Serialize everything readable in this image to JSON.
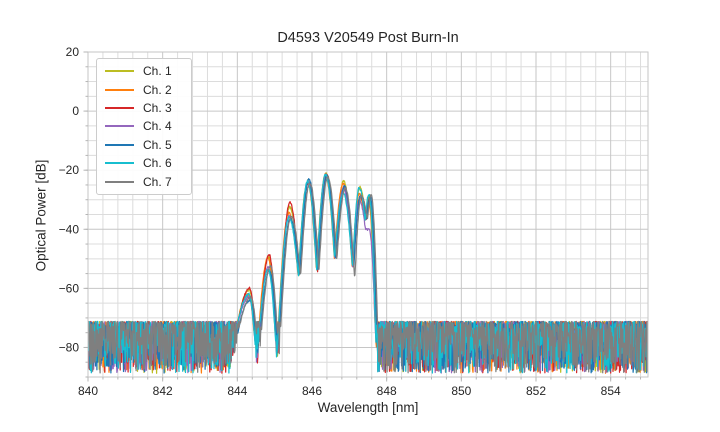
{
  "figure": {
    "background": "#ffffff",
    "text_color": "#262626",
    "grid_minor_color": "#dcdcdc",
    "grid_major_color": "#c6c6c6",
    "spine_color": "#c6c6c6",
    "tick_color": "#b5b5b5"
  },
  "chart_data": {
    "type": "line",
    "title": "D4593 V20549 Post Burn-In",
    "xlabel": "Wavelength [nm]",
    "ylabel": "Optical Power [dB]",
    "xlim": [
      840,
      855
    ],
    "ylim": [
      -90,
      20
    ],
    "x_ticks": [
      840,
      842,
      844,
      846,
      848,
      850,
      852,
      854
    ],
    "x_tick_labels": [
      "840",
      "842",
      "844",
      "846",
      "848",
      "850",
      "852",
      "854"
    ],
    "y_ticks": [
      20,
      0,
      -20,
      -40,
      -60,
      -80
    ],
    "y_tick_labels": [
      "20",
      "0",
      "−20",
      "−40",
      "−60",
      "−80"
    ],
    "x_minor_step": 0.4,
    "y_minor_step": 5,
    "grid": true,
    "legend_position": "upper-left",
    "series": [
      {
        "name": "Ch. 1",
        "color": "#bcbd22",
        "offset_nm": 0.0,
        "deltas": {
          "1": 1.5,
          "3": 1.0,
          "5": 1.0,
          "9": 0.3,
          "11": 1.5,
          "13": 1.5,
          "15": 0.5
        }
      },
      {
        "name": "Ch. 2",
        "color": "#ff7f0e",
        "offset_nm": -0.02,
        "deltas": {
          "3": 0.5,
          "5": -1.0,
          "7": -0.5,
          "11": 0.5,
          "13": -1.0,
          "15": -2.0
        }
      },
      {
        "name": "Ch. 3",
        "color": "#d62728",
        "offset_nm": 0.01,
        "deltas": {
          "1": 2.0,
          "3": 1.5,
          "5": 2.5,
          "7": -0.5,
          "11": -0.5,
          "13": -2.0
        }
      },
      {
        "name": "Ch. 4",
        "color": "#9467bd",
        "offset_nm": -0.01,
        "deltas": {
          "1": -1.0,
          "3": -3.0,
          "5": -2.0,
          "7": -0.3,
          "11": -1.0,
          "13": -3.0,
          "14": -3.0,
          "15": -11.0
        }
      },
      {
        "name": "Ch. 5",
        "color": "#1f77b4",
        "offset_nm": 0.02,
        "deltas": {
          "1": -2.0,
          "3": -4.0,
          "5": -3.0,
          "7": 0.5,
          "9": -0.5,
          "11": -0.5,
          "13": -1.5
        }
      },
      {
        "name": "Ch. 6",
        "color": "#17becf",
        "offset_nm": -0.015,
        "deltas": {
          "3": -3.5,
          "5": -2.5,
          "7": -0.3,
          "11": -2.8,
          "13": 1.0,
          "15": 1.0
        }
      },
      {
        "name": "Ch. 7",
        "color": "#7f7f7f",
        "offset_nm": 0.045,
        "deltas": {
          "1": -1.0,
          "3": -2.5,
          "5": -2.0,
          "7": -0.8,
          "9": -0.8,
          "11": -1.0,
          "12": -4.0,
          "13": -1.5,
          "15": 0.5
        }
      }
    ],
    "envelope_points": [
      [
        843.8,
        -88.0,
        "dip"
      ],
      [
        844.32,
        -62.0,
        "peak"
      ],
      [
        844.53,
        -86.0,
        "dip"
      ],
      [
        844.84,
        -50.0,
        "peak"
      ],
      [
        845.07,
        -84.0,
        "dip"
      ],
      [
        845.4,
        -33.5,
        "peak"
      ],
      [
        845.65,
        -56.0,
        "dip"
      ],
      [
        845.9,
        -23.5,
        "peak"
      ],
      [
        846.14,
        -54.0,
        "dip"
      ],
      [
        846.38,
        -21.5,
        "peak"
      ],
      [
        846.62,
        -50.0,
        "dip"
      ],
      [
        846.85,
        -25.0,
        "peak"
      ],
      [
        847.1,
        -53.0,
        "dip"
      ],
      [
        847.28,
        -27.0,
        "peak"
      ],
      [
        847.44,
        -37.0,
        "dip"
      ],
      [
        847.54,
        -29.0,
        "peak"
      ],
      [
        847.75,
        -90.0,
        "dip"
      ]
    ],
    "noise": {
      "top_db": -71.2,
      "depth_db": 17.5,
      "skew_exponent": 1.8,
      "samples_per_nm": 80,
      "seed": 1337
    },
    "line_width": 1.25
  },
  "legend": {
    "entries": [
      {
        "label": "Ch. 1",
        "color": "#bcbd22"
      },
      {
        "label": "Ch. 2",
        "color": "#ff7f0e"
      },
      {
        "label": "Ch. 3",
        "color": "#d62728"
      },
      {
        "label": "Ch. 4",
        "color": "#9467bd"
      },
      {
        "label": "Ch. 5",
        "color": "#1f77b4"
      },
      {
        "label": "Ch. 6",
        "color": "#17becf"
      },
      {
        "label": "Ch. 7",
        "color": "#7f7f7f"
      }
    ]
  }
}
